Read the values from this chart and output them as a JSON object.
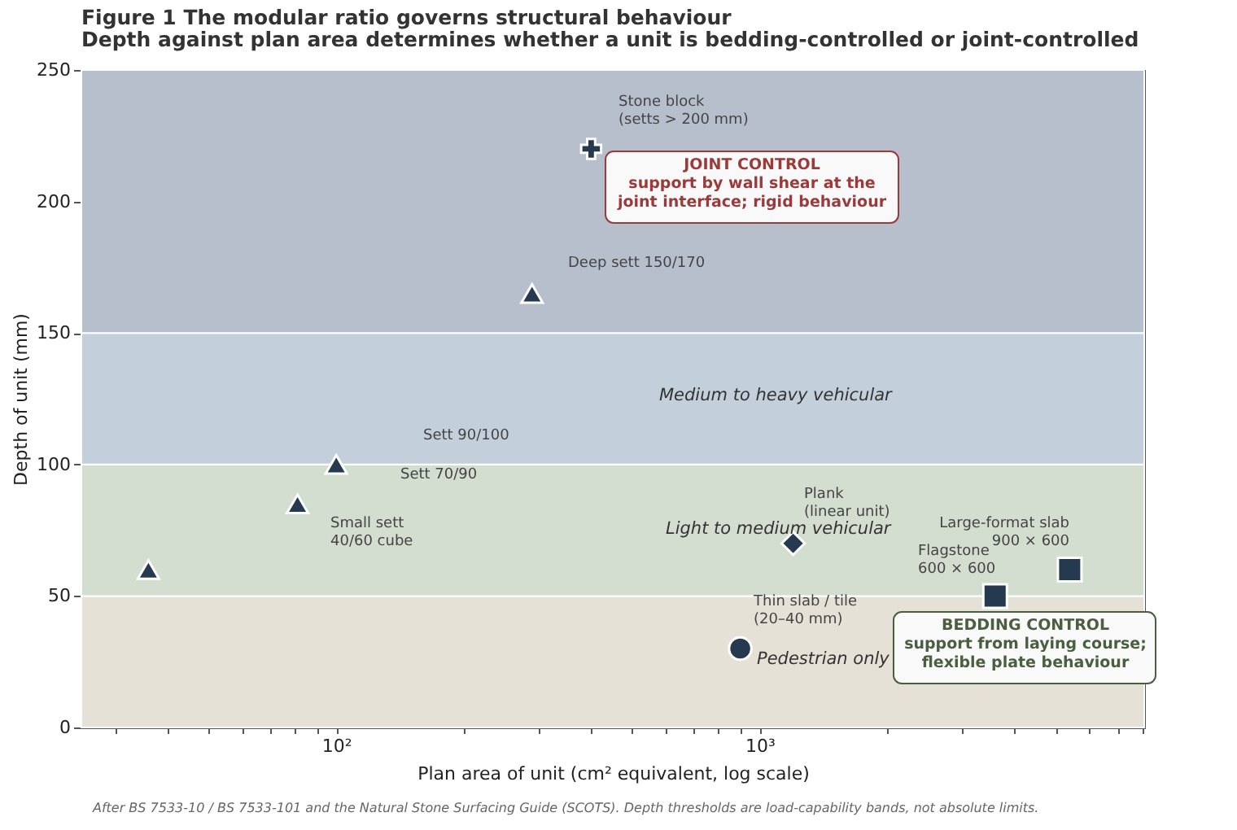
{
  "chart_data": {
    "type": "scatter",
    "title": "Figure 1  The modular ratio governs structural behaviour",
    "subtitle": "Depth against plan area determines whether a unit is bedding-controlled or joint-controlled",
    "xlabel": "Plan area of unit (cm² equivalent, log scale)",
    "ylabel": "Depth of unit (mm)",
    "log": "x",
    "xlim": [
      25,
      8100
    ],
    "xticks": [
      {
        "value": 30,
        "label": null
      },
      {
        "value": 40,
        "label": null
      },
      {
        "value": 50,
        "label": null
      },
      {
        "value": 60,
        "label": null
      },
      {
        "value": 70,
        "label": null
      },
      {
        "value": 80,
        "label": null
      },
      {
        "value": 90,
        "label": null
      },
      {
        "value": 100,
        "label": "10²"
      },
      {
        "value": 200,
        "label": null
      },
      {
        "value": 300,
        "label": null
      },
      {
        "value": 400,
        "label": null
      },
      {
        "value": 500,
        "label": null
      },
      {
        "value": 600,
        "label": null
      },
      {
        "value": 700,
        "label": null
      },
      {
        "value": 800,
        "label": null
      },
      {
        "value": 900,
        "label": null
      },
      {
        "value": 1000,
        "label": "10³"
      },
      {
        "value": 2000,
        "label": null
      },
      {
        "value": 3000,
        "label": null
      },
      {
        "value": 4000,
        "label": null
      },
      {
        "value": 5000,
        "label": null
      },
      {
        "value": 6000,
        "label": null
      },
      {
        "value": 7000,
        "label": null
      },
      {
        "value": 8000,
        "label": null
      }
    ],
    "ylim": [
      0,
      250
    ],
    "yticks": [
      0,
      50,
      100,
      150,
      200,
      250
    ],
    "grid": false,
    "series": [
      {
        "color": "#263a4f",
        "marker": "triangle",
        "x": [
          36,
          81,
          100,
          290
        ],
        "values": [
          60,
          85,
          100,
          165
        ]
      },
      {
        "color": "#263a4f",
        "marker": "cross",
        "x": [
          400
        ],
        "values": [
          220
        ]
      },
      {
        "color": "#263a4f",
        "marker": "diamond",
        "x": [
          1200
        ],
        "values": [
          70
        ]
      },
      {
        "color": "#263a4f",
        "marker": "circle",
        "x": [
          900
        ],
        "values": [
          30
        ]
      },
      {
        "color": "#263a4f",
        "marker": "square",
        "x": [
          3600,
          5400
        ],
        "values": [
          50,
          60
        ]
      }
    ],
    "bands": [
      {
        "axis": "y",
        "from": 0,
        "to": 50,
        "color": "#e6e1d6"
      },
      {
        "axis": "y",
        "from": 50,
        "to": 100,
        "color": "#d3ddd0"
      },
      {
        "axis": "y",
        "from": 100,
        "to": 150,
        "color": "#c3cfdb"
      },
      {
        "axis": "y",
        "from": 150,
        "to": 250,
        "color": "#b8bfcc"
      }
    ],
    "annotations": [
      "Stone block\n(setts > 200 mm)",
      "Deep sett 150/170",
      "Sett 90/100",
      "Sett 70/90",
      "Small sett\n40/60 cube",
      "Plank\n(linear unit)",
      "Large-format slab\n900 × 600",
      "Flagstone\n600 × 600",
      "Thin slab / tile\n(20–40 mm)",
      "Medium to heavy vehicular",
      "Light to medium vehicular",
      "Pedestrian only",
      "JOINT CONTROL\nsupport by wall shear at the\njoint interface; rigid behaviour",
      "BEDDING CONTROL\nsupport from laying course;\nflexible plate behaviour",
      "After BS 7533-10 / BS 7533-101 and the Natural Stone Surfacing Guide (SCOTS). Depth thresholds are load-capability bands, not absolute limits."
    ]
  }
}
